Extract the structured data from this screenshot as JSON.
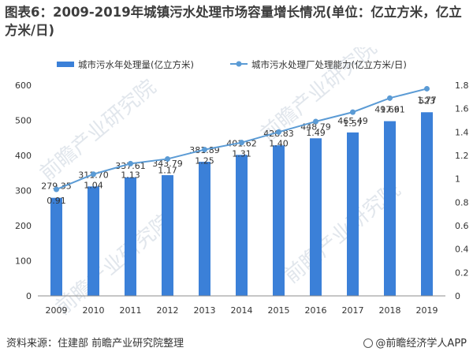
{
  "title": "图表6：2009-2019年城镇污水处理市场容量增长情况(单位：亿立方米，亿立方米/日)",
  "source": "资料来源：住建部 前瞻产业研究院整理",
  "brand": "@前瞻经济学人APP",
  "watermark": "前瞻产业研究院",
  "colors": {
    "bar": "#3b80d8",
    "line": "#5b9bd5",
    "axis": "#8c8c8c",
    "text": "#333333"
  },
  "chart_data": {
    "type": "bar+line",
    "categories": [
      "2009",
      "2010",
      "2011",
      "2012",
      "2013",
      "2014",
      "2015",
      "2016",
      "2017",
      "2018",
      "2019"
    ],
    "series": [
      {
        "name": "城市污水年处理量(亿立方米)",
        "type": "bar",
        "axis": "left",
        "values": [
          279.35,
          311.7,
          337.61,
          343.79,
          381.89,
          401.62,
          428.83,
          448.79,
          465.49,
          497.61,
          523
        ],
        "labels": [
          "279.35",
          "311.70",
          "337.61",
          "343.79",
          "381.89",
          "401.62",
          "428.83",
          "448.79",
          "465.49",
          "497.61",
          "523"
        ]
      },
      {
        "name": "城市污水处理厂处理能力(亿立方米/日)",
        "type": "line",
        "axis": "right",
        "values": [
          0.91,
          1.04,
          1.13,
          1.17,
          1.25,
          1.31,
          1.4,
          1.49,
          1.57,
          1.69,
          1.77
        ],
        "labels": [
          "0.91",
          "1.04",
          "1.13",
          "1.17",
          "1.25",
          "1.31",
          "1.40",
          "1.49",
          "1.57",
          "1.69",
          "1.77"
        ]
      }
    ],
    "y_left": {
      "min": 0,
      "max": 600,
      "ticks": [
        "0",
        "100",
        "200",
        "300",
        "400",
        "500",
        "600"
      ]
    },
    "y_right": {
      "min": 0,
      "max": 1.8,
      "ticks": [
        "0",
        "0.2",
        "0.4",
        "0.6",
        "0.8",
        "1",
        "1.2",
        "1.4",
        "1.6",
        "1.8"
      ]
    },
    "legend_position": "top",
    "grid": false
  }
}
